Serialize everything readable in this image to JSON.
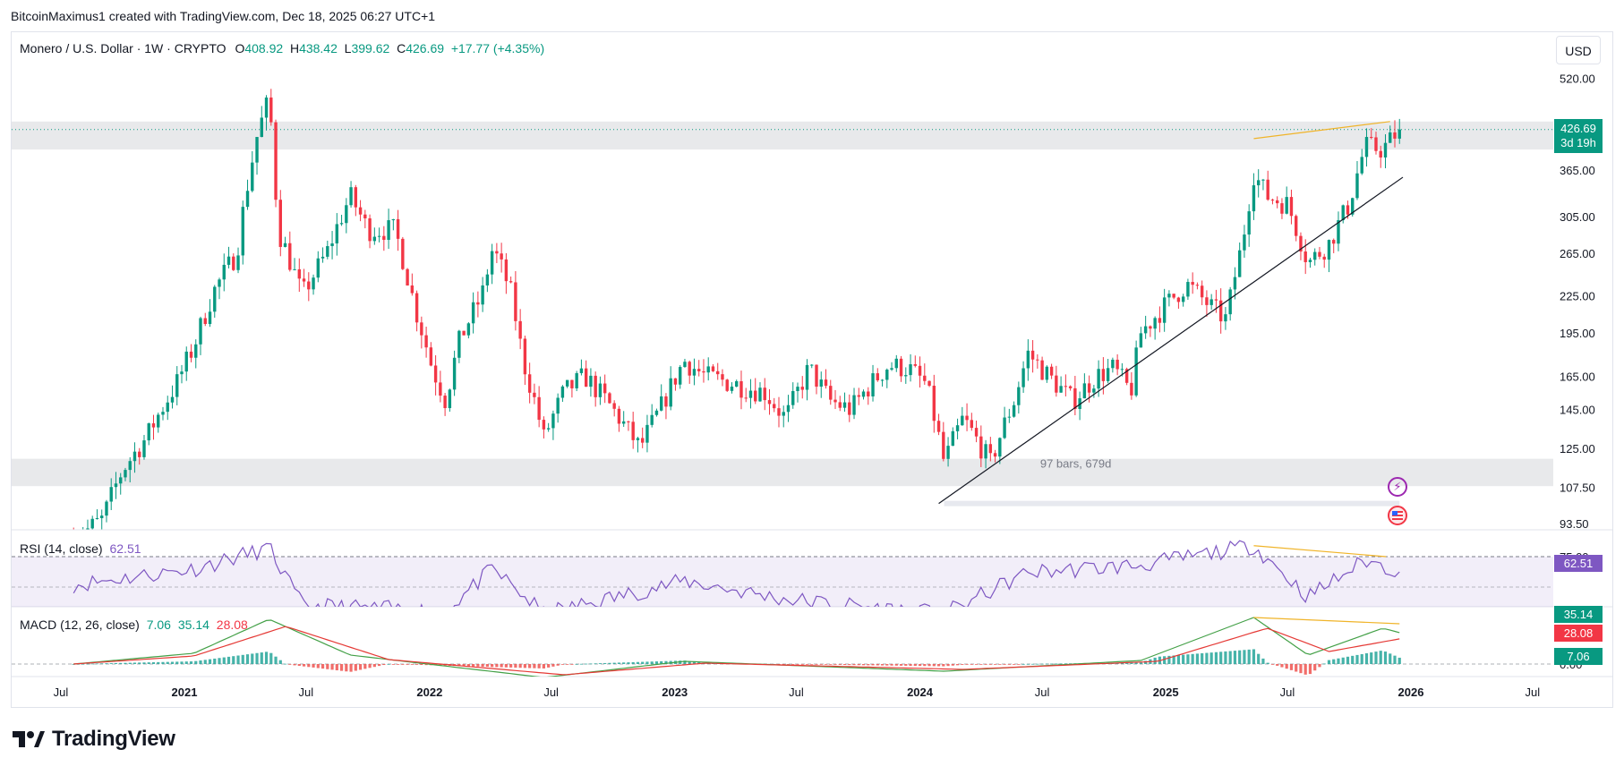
{
  "credit": "BitcoinMaximus1 created with TradingView.com, Dec 18, 2025 06:27 UTC+1",
  "legend": {
    "symbol": "Monero / U.S. Dollar · 1W · CRYPTO",
    "open_label": "O",
    "open": "408.92",
    "high_label": "H",
    "high": "438.42",
    "low_label": "L",
    "low": "399.62",
    "close_label": "C",
    "close": "426.69",
    "change": "+17.77 (+4.35%)"
  },
  "currency_button": "USD",
  "price_tag": {
    "price": "426.69",
    "countdown": "3d 19h"
  },
  "range_label": "97 bars, 679d",
  "rsi": {
    "label": "RSI (14, close)",
    "value": "62.51",
    "level_label": "75.00"
  },
  "macd": {
    "label": "MACD (12, 26, close)",
    "hist": "7.06",
    "macd": "35.14",
    "signal": "28.08",
    "level_label": "0.00"
  },
  "logo_text": "TradingView",
  "colors": {
    "up": "#089981",
    "down": "#f23645",
    "rsi": "#7e57c2",
    "macd_line": "#2962ff",
    "accent_line": "#f0b429"
  },
  "chart_data": {
    "type": "candlestick",
    "symbol": "XMR/USD",
    "interval": "1W",
    "price_scale": "log",
    "y_ticks": [
      93.5,
      107.5,
      125.0,
      145.0,
      165.0,
      195.0,
      225.0,
      265.0,
      305.0,
      365.0,
      520.0
    ],
    "y_tick_labels": [
      "93.50",
      "107.50",
      "125.00",
      "145.00",
      "165.00",
      "195.00",
      "225.00",
      "265.00",
      "305.00",
      "365.00",
      "520.00"
    ],
    "x_ticks": [
      "Jul",
      "2021",
      "Jul",
      "2022",
      "Jul",
      "2023",
      "Jul",
      "2024",
      "Jul",
      "2025",
      "Jul",
      "2026",
      "Jul"
    ],
    "last_price": 426.69,
    "resistance_zone": [
      395,
      440
    ],
    "support_zone": [
      108,
      120
    ],
    "trendline": [
      {
        "date": "2024-01-29",
        "price": 101
      },
      {
        "date": "2025-12-20",
        "price": 355
      }
    ],
    "price_path": [
      [
        "2020-07-20",
        88
      ],
      [
        "2020-09-01",
        95
      ],
      [
        "2020-10-01",
        115
      ],
      [
        "2020-11-05",
        130
      ],
      [
        "2020-12-20",
        160
      ],
      [
        "2021-01-15",
        185
      ],
      [
        "2021-02-15",
        230
      ],
      [
        "2021-03-20",
        265
      ],
      [
        "2021-04-20",
        420
      ],
      [
        "2021-05-07",
        480
      ],
      [
        "2021-05-20",
        290
      ],
      [
        "2021-06-25",
        225
      ],
      [
        "2021-08-01",
        265
      ],
      [
        "2021-09-05",
        330
      ],
      [
        "2021-10-01",
        290
      ],
      [
        "2021-11-10",
        290
      ],
      [
        "2021-12-10",
        215
      ],
      [
        "2022-01-05",
        170
      ],
      [
        "2022-01-25",
        150
      ],
      [
        "2022-02-15",
        190
      ],
      [
        "2022-03-20",
        225
      ],
      [
        "2022-04-05",
        270
      ],
      [
        "2022-05-01",
        230
      ],
      [
        "2022-05-20",
        175
      ],
      [
        "2022-06-20",
        130
      ],
      [
        "2022-07-20",
        155
      ],
      [
        "2022-08-20",
        165
      ],
      [
        "2022-10-01",
        145
      ],
      [
        "2022-11-10",
        125
      ],
      [
        "2022-12-10",
        145
      ],
      [
        "2023-01-15",
        175
      ],
      [
        "2023-02-15",
        165
      ],
      [
        "2023-04-01",
        160
      ],
      [
        "2023-05-15",
        155
      ],
      [
        "2023-06-15",
        140
      ],
      [
        "2023-07-20",
        170
      ],
      [
        "2023-08-20",
        150
      ],
      [
        "2023-09-20",
        145
      ],
      [
        "2023-10-20",
        160
      ],
      [
        "2023-11-15",
        172
      ],
      [
        "2023-12-15",
        170
      ],
      [
        "2024-01-10",
        160
      ],
      [
        "2024-02-06",
        118
      ],
      [
        "2024-03-05",
        140
      ],
      [
        "2024-04-15",
        118
      ],
      [
        "2024-05-20",
        150
      ],
      [
        "2024-06-10",
        180
      ],
      [
        "2024-07-10",
        165
      ],
      [
        "2024-08-15",
        150
      ],
      [
        "2024-09-20",
        165
      ],
      [
        "2024-10-15",
        170
      ],
      [
        "2024-11-10",
        155
      ],
      [
        "2024-11-25",
        195
      ],
      [
        "2024-12-20",
        210
      ],
      [
        "2025-02-01",
        235
      ],
      [
        "2025-03-10",
        215
      ],
      [
        "2025-04-01",
        205
      ],
      [
        "2025-04-25",
        275
      ],
      [
        "2025-05-12",
        360
      ],
      [
        "2025-06-01",
        330
      ],
      [
        "2025-07-01",
        320
      ],
      [
        "2025-08-01",
        255
      ],
      [
        "2025-09-01",
        275
      ],
      [
        "2025-10-01",
        320
      ],
      [
        "2025-10-25",
        400
      ],
      [
        "2025-11-20",
        395
      ],
      [
        "2025-12-15",
        426.69
      ]
    ],
    "rsi": {
      "name": "RSI (14, close)",
      "value": 62.51,
      "upper_band": 75,
      "lower_band": 25,
      "path": [
        [
          "2020-07-20",
          52
        ],
        [
          "2021-01-15",
          65
        ],
        [
          "2021-05-07",
          82
        ],
        [
          "2021-06-25",
          35
        ],
        [
          "2022-01-25",
          30
        ],
        [
          "2022-04-05",
          65
        ],
        [
          "2022-06-20",
          28
        ],
        [
          "2023-01-15",
          55
        ],
        [
          "2023-06-15",
          40
        ],
        [
          "2024-02-06",
          28
        ],
        [
          "2024-06-10",
          62
        ],
        [
          "2024-11-25",
          68
        ],
        [
          "2025-05-12",
          84
        ],
        [
          "2025-08-01",
          42
        ],
        [
          "2025-10-25",
          72
        ],
        [
          "2025-12-15",
          62.51
        ]
      ]
    },
    "macd": {
      "name": "MACD (12, 26, close)",
      "histogram": 7.06,
      "macd": 35.14,
      "signal": 28.08,
      "macd_path": [
        [
          "2020-07-20",
          0
        ],
        [
          "2021-01-15",
          12
        ],
        [
          "2021-05-07",
          50
        ],
        [
          "2021-09-05",
          10
        ],
        [
          "2022-06-20",
          -15
        ],
        [
          "2023-01-15",
          3
        ],
        [
          "2024-02-06",
          -8
        ],
        [
          "2024-11-25",
          4
        ],
        [
          "2025-05-12",
          52
        ],
        [
          "2025-08-01",
          10
        ],
        [
          "2025-11-20",
          40
        ],
        [
          "2025-12-15",
          35.14
        ]
      ],
      "signal_path": [
        [
          "2020-07-20",
          0
        ],
        [
          "2021-01-15",
          9
        ],
        [
          "2021-06-01",
          42
        ],
        [
          "2021-11-01",
          5
        ],
        [
          "2022-07-20",
          -12
        ],
        [
          "2023-02-15",
          1
        ],
        [
          "2024-03-05",
          -6
        ],
        [
          "2024-12-20",
          3
        ],
        [
          "2025-06-01",
          40
        ],
        [
          "2025-09-01",
          14
        ],
        [
          "2025-12-15",
          28.08
        ]
      ]
    },
    "annotations": [
      {
        "type": "text",
        "text": "97 bars, 679d"
      },
      {
        "type": "line",
        "pane": "price",
        "from": {
          "date": "2025-05-12",
          "price": 412
        },
        "to": {
          "date": "2025-12-01",
          "price": 440
        }
      },
      {
        "type": "line",
        "pane": "rsi",
        "from": {
          "date": "2025-05-12",
          "value": 84
        },
        "to": {
          "date": "2025-11-25",
          "value": 75
        }
      },
      {
        "type": "line",
        "pane": "macd",
        "from": {
          "date": "2025-05-12",
          "value": 52
        },
        "to": {
          "date": "2025-12-15",
          "value": 45
        }
      }
    ]
  }
}
